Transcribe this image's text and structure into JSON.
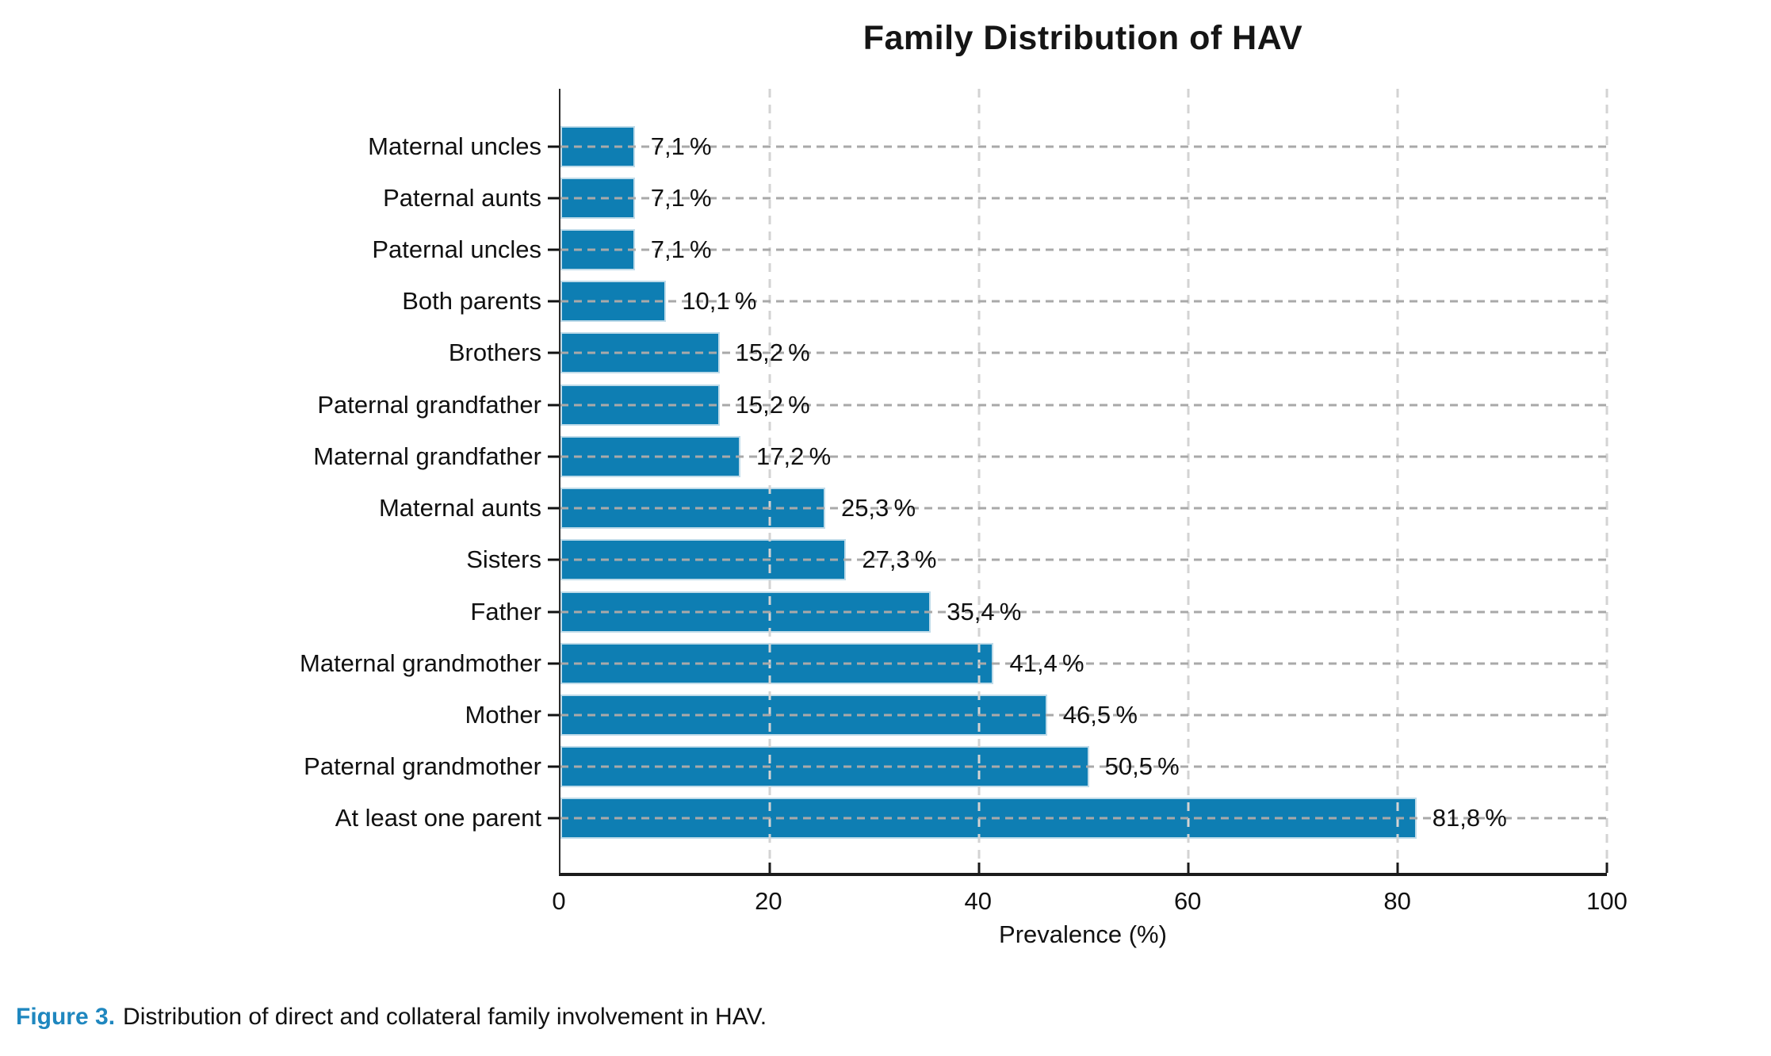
{
  "figure": {
    "caption_prefix": "Figure 3.",
    "caption_text": "Distribution of direct and collateral family involvement in HAV."
  },
  "colors": {
    "bar_fill": "#0e7eb3",
    "bar_edge": "#bfdbe9",
    "caption_accent": "#1f87bf",
    "gridline_h": "#a9a9a9",
    "gridline_v": "#d3d3d3",
    "axis": "#1b1b1b"
  },
  "chart_data": {
    "type": "bar",
    "orientation": "horizontal",
    "title": "Family Distribution of HAV",
    "xlabel": "Prevalence (%)",
    "ylabel": "",
    "xlim": [
      0,
      100
    ],
    "x_ticks": [
      0,
      20,
      40,
      60,
      80,
      100
    ],
    "grid": true,
    "legend": false,
    "categories": [
      "Maternal uncles",
      "Paternal aunts",
      "Paternal uncles",
      "Both parents",
      "Brothers",
      "Paternal grandfather",
      "Maternal grandfather",
      "Maternal aunts",
      "Sisters",
      "Father",
      "Maternal grandmother",
      "Mother",
      "Paternal grandmother",
      "At least one parent"
    ],
    "values": [
      7.1,
      7.1,
      7.1,
      10.1,
      15.2,
      15.2,
      17.2,
      25.3,
      27.3,
      35.4,
      41.4,
      46.5,
      50.5,
      81.8
    ],
    "value_labels": [
      "7,1 %",
      "7,1 %",
      "7,1 %",
      "10,1 %",
      "15,2 %",
      "15,2 %",
      "17,2 %",
      "25,3 %",
      "27,3 %",
      "35,4 %",
      "41,4 %",
      "46,5 %",
      "50,5 %",
      "81,8 %"
    ]
  }
}
